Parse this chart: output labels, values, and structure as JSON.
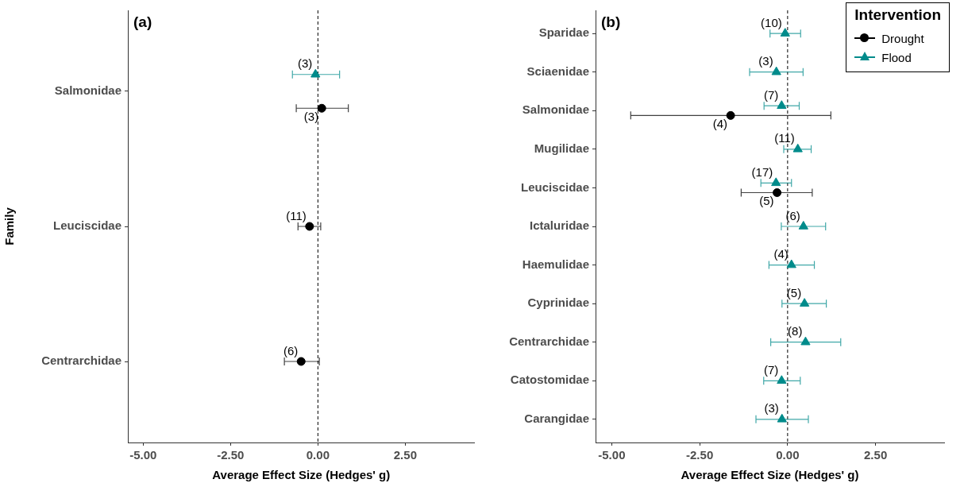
{
  "chart_data": [
    {
      "type": "scatter",
      "orientation": "horizontal",
      "title": "(a)",
      "xlabel": "Average Effect Size (Hedges' g)",
      "ylabel": "Family",
      "categories": [
        "Salmonidae",
        "Leuciscidae",
        "Centrarchidae"
      ],
      "series": [
        {
          "color": "#000000",
          "marker": "circle",
          "values": [
            0.11,
            -0.24,
            -0.48
          ],
          "errors": [
            [
              -0.62,
              0.87
            ],
            [
              -0.57,
              0.08
            ],
            [
              -0.96,
              0.04
            ]
          ]
        },
        {
          "color": "#008b8b",
          "marker": "triangle",
          "values": [
            -0.07,
            null,
            null
          ],
          "errors": [
            [
              -0.73,
              0.62
            ],
            null,
            null
          ]
        }
      ],
      "annotations": [
        {
          "text": "(3)",
          "x": 0.11,
          "y": "Salmonidae"
        },
        {
          "text": "(11)",
          "x": -0.24,
          "y": "Leuciscidae"
        },
        {
          "text": "(6)",
          "x": -0.48,
          "y": "Centrarchidae"
        },
        {
          "text": "(3)",
          "x": -0.07,
          "y": "Salmonidae"
        }
      ],
      "xlim": [
        -5.44,
        4.48
      ],
      "xticks": [
        {
          "value": -5,
          "label": "-5.00"
        },
        {
          "value": -2.5,
          "label": "-2.50"
        },
        {
          "value": 0,
          "label": "0.00"
        },
        {
          "value": 2.5,
          "label": "2.50"
        }
      ],
      "ref_lines": [
        {
          "axis": "x",
          "value": 0,
          "color": "#000000",
          "line_style": "dashed"
        }
      ],
      "grid": false,
      "legend": false
    },
    {
      "type": "scatter",
      "orientation": "horizontal",
      "title": "(b)",
      "xlabel": "Average Effect Size (Hedges' g)",
      "legend_title": "Intervention",
      "categories": [
        "Sparidae",
        "Sciaenidae",
        "Salmonidae",
        "Mugilidae",
        "Leuciscidae",
        "Ictaluridae",
        "Haemulidae",
        "Cyprinidae",
        "Centrarchidae",
        "Catostomidae",
        "Carangidae"
      ],
      "series": [
        {
          "name": "Drought",
          "color": "#000000",
          "marker": "circle",
          "values": [
            null,
            null,
            -1.62,
            null,
            -0.3,
            null,
            null,
            null,
            null,
            null,
            null
          ],
          "errors": [
            null,
            null,
            [
              -4.46,
              1.23
            ],
            null,
            [
              -1.32,
              0.7
            ],
            null,
            null,
            null,
            null,
            null,
            null
          ]
        },
        {
          "name": "Flood",
          "color": "#008b8b",
          "marker": "triangle",
          "values": [
            -0.07,
            -0.32,
            -0.17,
            0.29,
            -0.33,
            0.45,
            0.11,
            0.48,
            0.51,
            -0.17,
            -0.16
          ],
          "errors": [
            [
              -0.5,
              0.37
            ],
            [
              -1.08,
              0.44
            ],
            [
              -0.67,
              0.33
            ],
            [
              -0.11,
              0.67
            ],
            [
              -0.76,
              0.11
            ],
            [
              -0.18,
              1.08
            ],
            [
              -0.53,
              0.76
            ],
            [
              -0.16,
              1.1
            ],
            [
              -0.48,
              1.51
            ],
            [
              -0.68,
              0.36
            ],
            [
              -0.9,
              0.59
            ]
          ]
        }
      ],
      "annotations": [
        {
          "text": "(4)",
          "x": -1.62,
          "y": "Salmonidae"
        },
        {
          "text": "(5)",
          "x": -0.3,
          "y": "Leuciscidae"
        },
        {
          "text": "(10)",
          "x": -0.07,
          "y": "Sparidae"
        },
        {
          "text": "(3)",
          "x": -0.32,
          "y": "Sciaenidae"
        },
        {
          "text": "(7)",
          "x": -0.17,
          "y": "Salmonidae"
        },
        {
          "text": "(11)",
          "x": 0.29,
          "y": "Mugilidae"
        },
        {
          "text": "(17)",
          "x": -0.33,
          "y": "Leuciscidae"
        },
        {
          "text": "(6)",
          "x": 0.45,
          "y": "Ictaluridae"
        },
        {
          "text": "(4)",
          "x": 0.11,
          "y": "Haemulidae"
        },
        {
          "text": "(5)",
          "x": 0.48,
          "y": "Cyprinidae"
        },
        {
          "text": "(8)",
          "x": 0.51,
          "y": "Centrarchidae"
        },
        {
          "text": "(7)",
          "x": -0.17,
          "y": "Catostomidae"
        },
        {
          "text": "(3)",
          "x": -0.16,
          "y": "Carangidae"
        }
      ],
      "xlim": [
        -5.46,
        4.45
      ],
      "xticks": [
        {
          "value": -5,
          "label": "-5.00"
        },
        {
          "value": -2.5,
          "label": "-2.50"
        },
        {
          "value": 0,
          "label": "0.00"
        },
        {
          "value": 2.5,
          "label": "2.50"
        }
      ],
      "ref_lines": [
        {
          "axis": "x",
          "value": 0,
          "color": "#000000",
          "line_style": "dashed"
        }
      ],
      "grid": false,
      "legend": "top right"
    }
  ]
}
